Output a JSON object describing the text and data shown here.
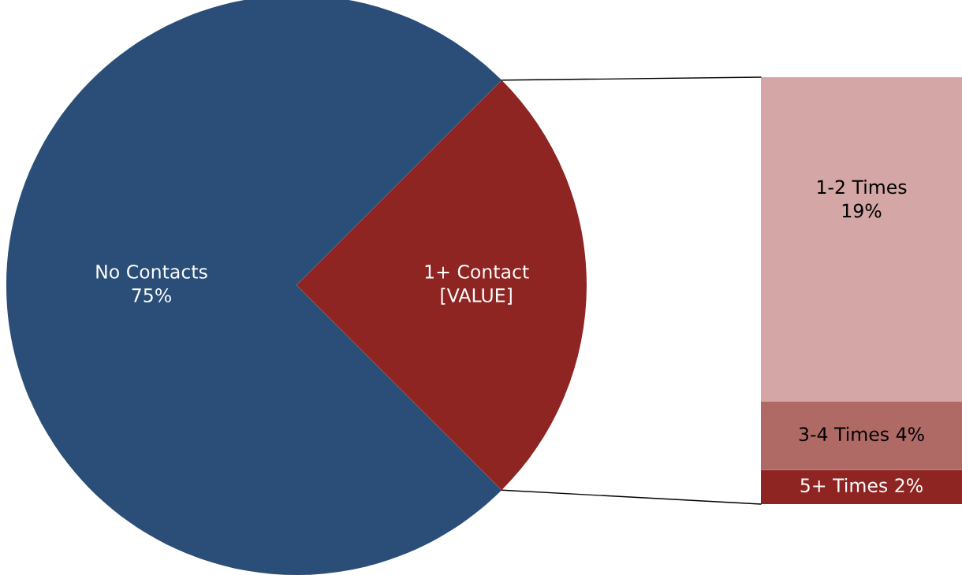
{
  "chart_data": [
    {
      "type": "pie",
      "categories": [
        "No Contacts",
        "1+ Contact"
      ],
      "values": [
        75,
        25
      ],
      "colors": [
        "#2a4e77",
        "#8e2522"
      ],
      "value_labels": [
        "75%",
        "[VALUE]"
      ]
    },
    {
      "type": "bar",
      "stacked": true,
      "categories": [
        null
      ],
      "series": [
        {
          "name": "5+ Times",
          "color": "#8e2522",
          "values": [
            2
          ],
          "value_labels": [
            "2%"
          ]
        },
        {
          "name": "3-4 Times",
          "color": "#b06a66",
          "values": [
            4
          ],
          "value_labels": [
            "4%"
          ]
        },
        {
          "name": "1-2 Times",
          "color": "#d4a6a5",
          "values": [
            19
          ],
          "value_labels": [
            "19%"
          ]
        }
      ]
    }
  ]
}
